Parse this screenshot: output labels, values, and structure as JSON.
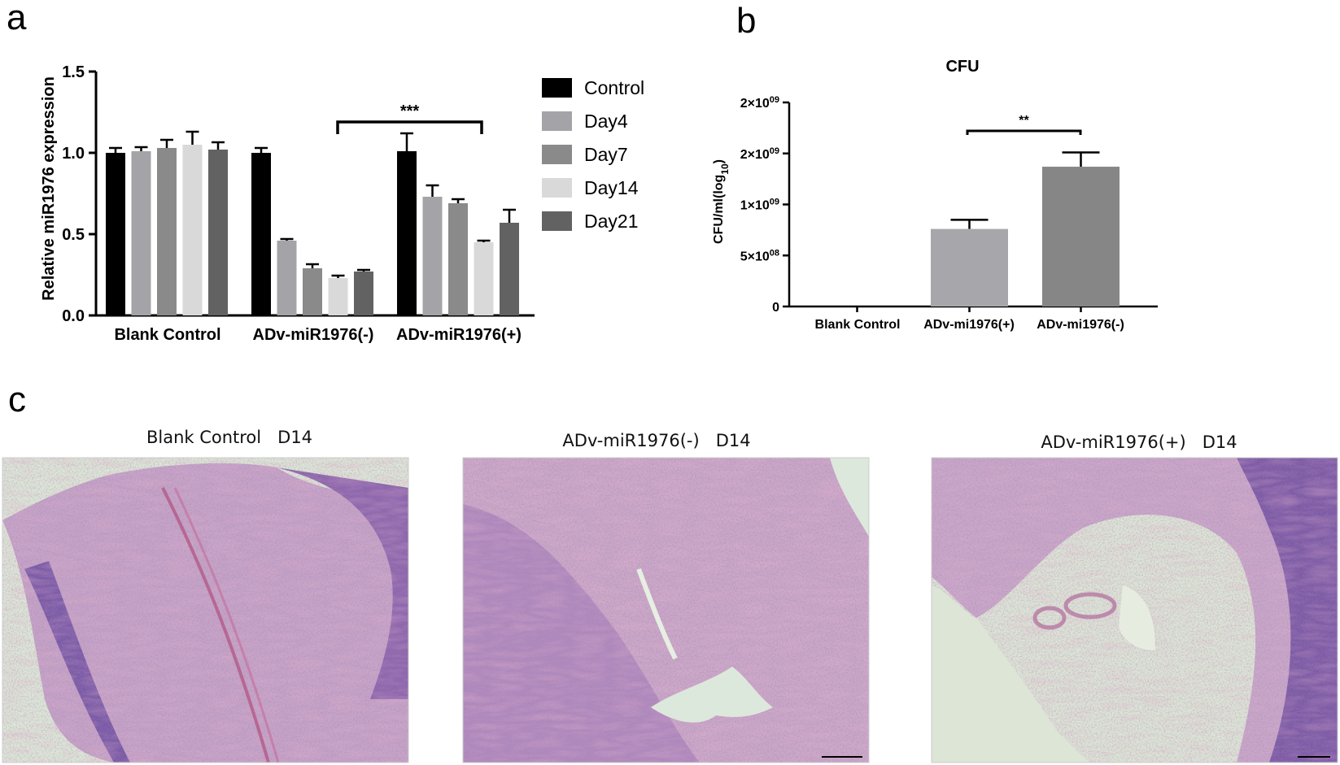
{
  "panels": {
    "a": "a",
    "b": "b",
    "c": "c"
  },
  "colors": {
    "Control": "#000000",
    "Day4": "#a4a4a8",
    "Day7": "#8a8a8a",
    "Day14": "#d9d9d9",
    "Day21": "#626262",
    "cfu_plus": "#a7a7ab",
    "cfu_minus": "#868686"
  },
  "chart_data": [
    {
      "type": "bar",
      "ylabel": "Relative miR1976 expression",
      "ylim": [
        0,
        1.5
      ],
      "yticks": [
        "0.0",
        "0.5",
        "1.0",
        "1.5"
      ],
      "categories": [
        "Blank Control",
        "ADv-miR1976(-)",
        "ADv-miR1976(+)"
      ],
      "series": [
        {
          "name": "Control",
          "values": [
            1.0,
            1.0,
            1.01
          ],
          "errors": [
            0.03,
            0.03,
            0.11
          ]
        },
        {
          "name": "Day4",
          "values": [
            1.01,
            0.46,
            0.73
          ],
          "errors": [
            0.025,
            0.01,
            0.07
          ]
        },
        {
          "name": "Day7",
          "values": [
            1.03,
            0.29,
            0.69
          ],
          "errors": [
            0.05,
            0.025,
            0.025
          ]
        },
        {
          "name": "Day14",
          "values": [
            1.05,
            0.23,
            0.45
          ],
          "errors": [
            0.08,
            0.015,
            0.01
          ]
        },
        {
          "name": "Day21",
          "values": [
            1.02,
            0.27,
            0.57
          ],
          "errors": [
            0.045,
            0.01,
            0.08
          ]
        }
      ],
      "annotations": [
        {
          "text": "***",
          "from": "ADv-miR1976(-)",
          "to": "ADv-miR1976(+)"
        }
      ],
      "legend": "right"
    },
    {
      "type": "bar",
      "title": "CFU",
      "ylabel": "CFU/ml(log10)",
      "ylim": [
        0,
        2000000000
      ],
      "yticks": [
        {
          "value": 0,
          "base": "0",
          "exp": ""
        },
        {
          "value": 500000000,
          "base": "5×10",
          "exp": "08"
        },
        {
          "value": 1000000000,
          "base": "1×10",
          "exp": "09"
        },
        {
          "value": 1500000000,
          "base": "2×10",
          "exp": "09"
        },
        {
          "value": 2000000000,
          "base": "2×10",
          "exp": "09"
        }
      ],
      "categories": [
        "Blank Control",
        "ADv-mi1976(+)",
        "ADv-mi1976(-)"
      ],
      "values": [
        0,
        760000000,
        1370000000
      ],
      "errors": [
        0,
        90000000,
        140000000
      ],
      "annotations": [
        {
          "text": "**",
          "from": "ADv-mi1976(+)",
          "to": "ADv-mi1976(-)"
        }
      ]
    }
  ],
  "histology": [
    {
      "title": "Blank Control   D14"
    },
    {
      "title": "ADv-miR1976(-)   D14"
    },
    {
      "title": "ADv-miR1976(+)   D14"
    }
  ]
}
